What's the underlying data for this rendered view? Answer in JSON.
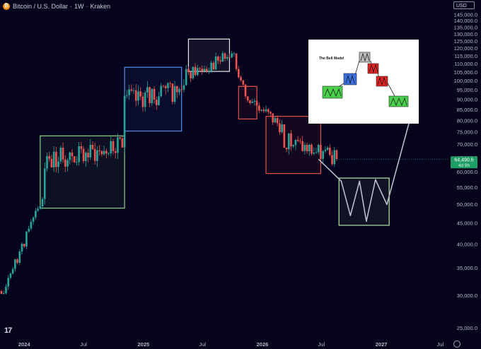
{
  "header": {
    "symbol": "Bitcoin / U.S. Dollar",
    "interval": "1W",
    "exchange": "Kraken",
    "separator": "·",
    "currency_button": "USD"
  },
  "price_tag": {
    "price": "64,490.6",
    "countdown": "4d 9h"
  },
  "inset": {
    "title": "The Bell Model"
  },
  "colors": {
    "background": "#05031d",
    "up": "#26a69a",
    "down": "#ef5350",
    "box_green": "#8fd18a",
    "box_blue": "#5b8def",
    "box_white": "#e6e6e6",
    "box_red": "#e0554f",
    "box_projection": "#b7e8b0",
    "projection_line": "#b9bcc8"
  },
  "chart_data": {
    "type": "candlestick",
    "y_scale": "log",
    "ylim": [
      23500,
      149000
    ],
    "xlim": [
      "2023-10-23",
      "2027-07-26"
    ],
    "y_ticks": [
      "25,000.0",
      "30,000.0",
      "35,000.0",
      "40,000.0",
      "45,000.0",
      "50,000.0",
      "55,000.0",
      "60,000.0",
      "65,000.0",
      "70,000.0",
      "75,000.0",
      "80,000.0",
      "85,000.0",
      "90,000.0",
      "95,000.0",
      "100,000.0",
      "105,000.0",
      "110,000.0",
      "115,000.0",
      "120,000.0",
      "125,000.0",
      "130,000.0",
      "135,000.0",
      "140,000.0",
      "145,000.0"
    ],
    "x_ticks": [
      {
        "label": "2024",
        "date": "2024-01-01"
      },
      {
        "label": "Jul",
        "date": "2024-07-01"
      },
      {
        "label": "2025",
        "date": "2025-01-01"
      },
      {
        "label": "Jul",
        "date": "2025-07-01"
      },
      {
        "label": "2026",
        "date": "2026-01-01"
      },
      {
        "label": "Jul",
        "date": "2026-07-01"
      },
      {
        "label": "2027",
        "date": "2027-01-01"
      },
      {
        "label": "Jul",
        "date": "2027-07-01"
      }
    ],
    "last_price": 64490.6,
    "phases": [
      {
        "start": "2023-10-23",
        "end": "2024-02-26",
        "from": 30000,
        "to": 52000,
        "sigma": 0.032,
        "seed": 11
      },
      {
        "start": "2024-03-04",
        "end": "2024-10-28",
        "from": 64000,
        "to": 69000,
        "sigma": 0.06,
        "seed": 23
      },
      {
        "start": "2024-11-04",
        "end": "2025-05-05",
        "from": 90000,
        "to": 95000,
        "sigma": 0.06,
        "seed": 37
      },
      {
        "start": "2025-05-12",
        "end": "2025-10-06",
        "from": 104000,
        "to": 116000,
        "sigma": 0.04,
        "seed": 41
      },
      {
        "start": "2025-10-13",
        "end": "2025-11-24",
        "from": 108000,
        "to": 88000,
        "sigma": 0.03,
        "seed": 53
      },
      {
        "start": "2025-12-01",
        "end": "2026-03-02",
        "from": 88000,
        "to": 76000,
        "sigma": 0.04,
        "seed": 61
      },
      {
        "start": "2026-03-09",
        "end": "2026-08-17",
        "from": 72000,
        "to": 64490,
        "sigma": 0.05,
        "seed": 71
      }
    ],
    "boxes": [
      {
        "name": "accumulation-box",
        "color": "#8fd18a",
        "x0": "2024-02-19",
        "x1": "2024-11-04",
        "y0": 49000,
        "y1": 73500
      },
      {
        "name": "markup-box",
        "color": "#5b8def",
        "x0": "2024-11-04",
        "x1": "2025-04-28",
        "y0": 75500,
        "y1": 108000
      },
      {
        "name": "top-box",
        "color": "#e6e6e6",
        "x0": "2025-05-19",
        "x1": "2025-09-22",
        "y0": 105500,
        "y1": 126500
      },
      {
        "name": "breakdown-box",
        "color": "#e0554f",
        "x0": "2025-10-20",
        "x1": "2025-12-15",
        "y0": 80800,
        "y1": 97000
      },
      {
        "name": "decline-box",
        "color": "#e0554f",
        "x0": "2026-01-12",
        "x1": "2026-06-29",
        "y0": 59500,
        "y1": 82000
      },
      {
        "name": "projected-bottom-box",
        "color": "#b7e8b0",
        "x0": "2026-08-24",
        "x1": "2027-01-25",
        "y0": 44500,
        "y1": 58000
      }
    ],
    "projection_path": [
      {
        "date": "2026-06-22",
        "value": 64490
      },
      {
        "date": "2026-08-31",
        "value": 57000
      },
      {
        "date": "2026-09-28",
        "value": 47000
      },
      {
        "date": "2026-10-26",
        "value": 57000
      },
      {
        "date": "2026-11-16",
        "value": 45500
      },
      {
        "date": "2026-12-14",
        "value": 57500
      },
      {
        "date": "2027-01-18",
        "value": 50000
      },
      {
        "date": "2027-04-12",
        "value": 88000
      }
    ]
  }
}
